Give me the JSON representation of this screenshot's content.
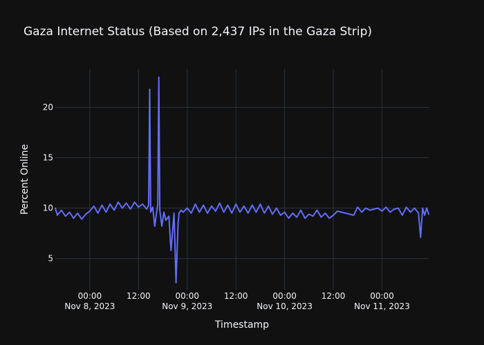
{
  "chart_data": {
    "type": "line",
    "title": "Gaza Internet Status (Based on 2,437 IPs in the Gaza Strip)",
    "xlabel": "Timestamp",
    "ylabel": "Percent Online",
    "x_range": [
      "2023-11-07T15:30",
      "2023-11-11T11:30"
    ],
    "ylim": [
      1.9,
      23.8
    ],
    "grid": true,
    "theme_colors": {
      "background": "#111111",
      "grid": "#283442",
      "text": "#f2f5fa",
      "line": "#636efa"
    },
    "x_ticks": [
      {
        "t": "2023-11-08T00:00",
        "line1": "00:00",
        "line2": "Nov 8, 2023"
      },
      {
        "t": "2023-11-08T12:00",
        "line1": "12:00",
        "line2": ""
      },
      {
        "t": "2023-11-09T00:00",
        "line1": "00:00",
        "line2": "Nov 9, 2023"
      },
      {
        "t": "2023-11-09T12:00",
        "line1": "12:00",
        "line2": ""
      },
      {
        "t": "2023-11-10T00:00",
        "line1": "00:00",
        "line2": "Nov 10, 2023"
      },
      {
        "t": "2023-11-10T12:00",
        "line1": "12:00",
        "line2": ""
      },
      {
        "t": "2023-11-11T00:00",
        "line1": "00:00",
        "line2": "Nov 11, 2023"
      }
    ],
    "y_ticks": [
      5,
      10,
      15,
      20
    ],
    "series": [
      {
        "x": [
          "2023-11-07T15:30",
          "2023-11-07T16:00",
          "2023-11-07T17:00",
          "2023-11-07T18:00",
          "2023-11-07T19:00",
          "2023-11-07T20:00",
          "2023-11-07T21:00",
          "2023-11-07T22:00",
          "2023-11-07T23:00",
          "2023-11-08T00:00",
          "2023-11-08T01:00",
          "2023-11-08T02:00",
          "2023-11-08T03:00",
          "2023-11-08T04:00",
          "2023-11-08T05:00",
          "2023-11-08T06:00",
          "2023-11-08T07:00",
          "2023-11-08T08:00",
          "2023-11-08T09:00",
          "2023-11-08T10:00",
          "2023-11-08T11:00",
          "2023-11-08T12:00",
          "2023-11-08T13:00",
          "2023-11-08T14:00",
          "2023-11-08T14:30",
          "2023-11-08T14:45",
          "2023-11-08T15:00",
          "2023-11-08T15:30",
          "2023-11-08T16:00",
          "2023-11-08T16:45",
          "2023-11-08T17:00",
          "2023-11-08T17:15",
          "2023-11-08T17:45",
          "2023-11-08T18:15",
          "2023-11-08T18:45",
          "2023-11-08T19:30",
          "2023-11-08T20:00",
          "2023-11-08T20:45",
          "2023-11-08T21:15",
          "2023-11-08T21:45",
          "2023-11-08T22:00",
          "2023-11-08T22:30",
          "2023-11-08T23:00",
          "2023-11-09T00:00",
          "2023-11-09T01:00",
          "2023-11-09T02:00",
          "2023-11-09T03:00",
          "2023-11-09T04:00",
          "2023-11-09T05:00",
          "2023-11-09T06:00",
          "2023-11-09T07:00",
          "2023-11-09T08:00",
          "2023-11-09T09:00",
          "2023-11-09T10:00",
          "2023-11-09T11:00",
          "2023-11-09T12:00",
          "2023-11-09T13:00",
          "2023-11-09T14:00",
          "2023-11-09T15:00",
          "2023-11-09T16:00",
          "2023-11-09T17:00",
          "2023-11-09T18:00",
          "2023-11-09T19:00",
          "2023-11-09T20:00",
          "2023-11-09T21:00",
          "2023-11-09T22:00",
          "2023-11-09T23:00",
          "2023-11-10T00:00",
          "2023-11-10T01:00",
          "2023-11-10T02:00",
          "2023-11-10T03:00",
          "2023-11-10T04:00",
          "2023-11-10T05:00",
          "2023-11-10T06:00",
          "2023-11-10T07:00",
          "2023-11-10T08:00",
          "2023-11-10T09:00",
          "2023-11-10T10:00",
          "2023-11-10T11:00",
          "2023-11-10T12:00",
          "2023-11-10T13:00",
          "2023-11-10T14:00",
          "2023-11-10T15:00",
          "2023-11-10T16:00",
          "2023-11-10T17:00",
          "2023-11-10T18:00",
          "2023-11-10T19:00",
          "2023-11-10T20:00",
          "2023-11-10T21:00",
          "2023-11-10T22:00",
          "2023-11-10T23:00",
          "2023-11-11T00:00",
          "2023-11-11T01:00",
          "2023-11-11T02:00",
          "2023-11-11T03:00",
          "2023-11-11T04:00",
          "2023-11-11T05:00",
          "2023-11-11T06:00",
          "2023-11-11T07:00",
          "2023-11-11T08:00",
          "2023-11-11T09:00",
          "2023-11-11T09:30",
          "2023-11-11T10:00",
          "2023-11-11T10:30",
          "2023-11-11T11:00",
          "2023-11-11T11:30"
        ],
        "values": [
          10.0,
          9.3,
          9.8,
          9.2,
          9.6,
          9.0,
          9.5,
          8.9,
          9.4,
          9.7,
          10.2,
          9.5,
          10.3,
          9.6,
          10.4,
          9.8,
          10.6,
          10.0,
          10.5,
          9.9,
          10.6,
          10.1,
          10.4,
          9.9,
          10.3,
          21.8,
          9.6,
          10.1,
          8.2,
          10.4,
          23.0,
          9.8,
          8.2,
          9.6,
          8.8,
          9.2,
          5.8,
          9.5,
          2.6,
          8.5,
          9.5,
          9.8,
          9.6,
          10.0,
          9.5,
          10.4,
          9.6,
          10.3,
          9.5,
          10.2,
          9.7,
          10.5,
          9.6,
          10.3,
          9.5,
          10.4,
          9.6,
          10.2,
          9.5,
          10.3,
          9.6,
          10.4,
          9.5,
          10.2,
          9.4,
          10.0,
          9.3,
          9.6,
          9.0,
          9.5,
          9.1,
          9.8,
          9.0,
          9.4,
          9.2,
          9.8,
          9.1,
          9.5,
          9.0,
          9.3,
          9.7,
          9.6,
          9.5,
          9.4,
          9.3,
          10.1,
          9.6,
          10.0,
          9.8,
          9.9,
          10.0,
          9.7,
          10.1,
          9.6,
          9.9,
          10.0,
          9.3,
          10.1,
          9.6,
          10.0,
          9.5,
          7.1,
          10.0,
          9.3,
          10.0,
          9.4
        ]
      }
    ]
  }
}
